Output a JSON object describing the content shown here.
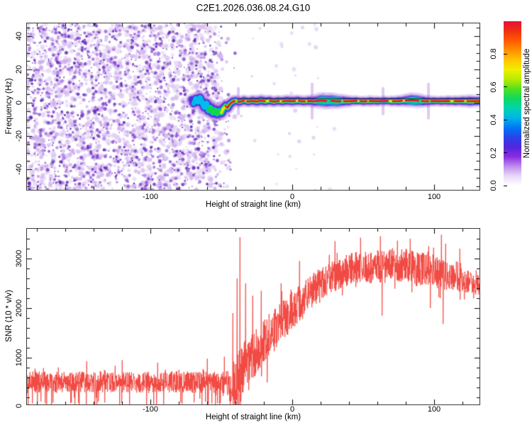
{
  "title": "C2E1.2026.036.08.24.G10",
  "colors": {
    "snr_line": "#f03b33",
    "trace_core": "#e81228",
    "noise_purple": "#8a2be2",
    "axis": "#3a3a3a",
    "background": "#ffffff"
  },
  "top_chart": {
    "xlabel": "Height of straight line (km)",
    "ylabel": "Frequency (Hz)",
    "x_tick_values": [
      -100,
      0,
      100
    ],
    "x_tick_labels": [
      "-100",
      "0",
      "100"
    ],
    "x_minor_step": 20,
    "y_tick_values": [
      40,
      20,
      0,
      -20,
      -40
    ],
    "y_tick_labels": [
      "40",
      "20",
      "0",
      "-20",
      "-40"
    ],
    "y_minor_step": 5
  },
  "bottom_chart": {
    "xlabel": "Height of straight line (km)",
    "ylabel": "SNR (10 * v/v)",
    "x_tick_values": [
      -100,
      0,
      100
    ],
    "x_tick_labels": [
      "-100",
      "0",
      "100"
    ],
    "x_minor_step": 20,
    "y_tick_values": [
      3000,
      2000,
      1000,
      0
    ],
    "y_tick_labels": [
      "3000",
      "2000",
      "1000",
      "0"
    ],
    "y_minor_step": 200
  },
  "colorbar": {
    "label": "Normalized spectral amplitude",
    "tick_values": [
      0.8,
      0.6,
      0.4,
      0.2,
      0.0
    ],
    "tick_labels": [
      "0.8",
      "0.6",
      "0.4",
      "0.2",
      "0.0"
    ],
    "range": [
      0,
      1
    ],
    "gradient_stops_bottom_to_top": [
      "#ffffff",
      "#e8d8f7",
      "#bf8ceb",
      "#8a2be2",
      "#5126dd",
      "#2a43ea",
      "#0077f5",
      "#00b4e8",
      "#00d4b0",
      "#10d860",
      "#52e020",
      "#b8ec00",
      "#f0ee00",
      "#ffc400",
      "#ff9000",
      "#ff5a00",
      "#f03010",
      "#e6103c"
    ]
  },
  "chart_data": [
    {
      "type": "heatmap",
      "title": "C2E1.2026.036.08.24.G10",
      "xlabel": "Height of straight line (km)",
      "ylabel": "Frequency (Hz)",
      "xlim": [
        -187,
        132
      ],
      "ylim": [
        -52,
        48
      ],
      "grid": false,
      "colorbar": {
        "label": "Normalized spectral amplitude",
        "ticks": [
          0.0,
          0.2,
          0.4,
          0.6,
          0.8
        ],
        "range": [
          0,
          1
        ]
      },
      "noise_region": {
        "x_range_km": [
          -187,
          -62
        ],
        "fade_out_by_km": -39,
        "amplitude_range": [
          0.0,
          0.35
        ],
        "description": "broadband purple speckle noise filling all frequencies before signal acquisition"
      },
      "signal_trace": {
        "description": "narrowband carrier near 0 Hz, core amplitude ~1.0, acquired at -71 km, stable after -45 km",
        "core_start_km": -47,
        "black_model_line": {
          "start_km": -38,
          "end_km": 132,
          "hz": 2.3
        },
        "points_km_hz": [
          [
            -71,
            2
          ],
          [
            -69.5,
            -0.5
          ],
          [
            -68,
            2.5
          ],
          [
            -66.5,
            0.5
          ],
          [
            -65,
            3
          ],
          [
            -63.5,
            0
          ],
          [
            -62,
            -2.5
          ],
          [
            -60.5,
            -0.5
          ],
          [
            -59,
            -4.5
          ],
          [
            -57.5,
            -3
          ],
          [
            -56,
            -6
          ],
          [
            -54.5,
            -4.5
          ],
          [
            -53,
            -6.5
          ],
          [
            -51.5,
            -5
          ],
          [
            -50,
            -6
          ],
          [
            -48.5,
            -3.5
          ],
          [
            -47,
            -2
          ],
          [
            -45.5,
            -3
          ],
          [
            -44,
            -0.8
          ],
          [
            -42,
            0.6
          ],
          [
            -40,
            1.1
          ],
          [
            -37,
            0.5
          ],
          [
            -34,
            1.3
          ],
          [
            -31,
            0.6
          ],
          [
            -28,
            1.2
          ],
          [
            -25,
            0.7
          ],
          [
            -22,
            1.3
          ],
          [
            -19,
            0.8
          ],
          [
            -16,
            1.2
          ],
          [
            -13,
            0.6
          ],
          [
            -10,
            1.1
          ],
          [
            -7,
            0.8
          ],
          [
            -4,
            1.2
          ],
          [
            0,
            0.9
          ],
          [
            4,
            1.2
          ],
          [
            8,
            0.8
          ],
          [
            12,
            1.1
          ],
          [
            16,
            0.9
          ],
          [
            20,
            1.3
          ],
          [
            24,
            1.0
          ],
          [
            28,
            1.2
          ],
          [
            32,
            0.8
          ],
          [
            36,
            1.0
          ],
          [
            40,
            0.9
          ],
          [
            45,
            1.1
          ],
          [
            50,
            0.8
          ],
          [
            55,
            1.0
          ],
          [
            60,
            0.9
          ],
          [
            65,
            1.1
          ],
          [
            70,
            0.9
          ],
          [
            75,
            1.0
          ],
          [
            80,
            1.3
          ],
          [
            84,
            1.6
          ],
          [
            88,
            1.3
          ],
          [
            92,
            1.0
          ],
          [
            96,
            0.9
          ],
          [
            100,
            1.0
          ],
          [
            105,
            0.9
          ],
          [
            110,
            1.0
          ],
          [
            115,
            0.9
          ],
          [
            120,
            1.0
          ],
          [
            125,
            0.9
          ],
          [
            132,
            1.0
          ]
        ],
        "blob_km": [
          22,
          30,
          86
        ],
        "streak_km": [
          -38,
          14,
          64,
          96
        ]
      }
    },
    {
      "type": "line",
      "xlabel": "Height of straight line (km)",
      "ylabel": "SNR (10 * v/v)",
      "xlim": [
        -187,
        132
      ],
      "ylim": [
        0,
        3600
      ],
      "grid": false,
      "legend": "none",
      "series": [
        {
          "name": "SNR",
          "color": "#f03b33",
          "x_km": [
            -187,
            -160,
            -140,
            -120,
            -100,
            -80,
            -65,
            -55,
            -48,
            -44,
            -41,
            -38,
            -35,
            -32,
            -29,
            -26,
            -23,
            -20,
            -16,
            -12,
            -8,
            -4,
            0,
            4,
            8,
            12,
            16,
            20,
            25,
            30,
            35,
            40,
            45,
            50,
            55,
            60,
            65,
            70,
            75,
            80,
            85,
            90,
            95,
            100,
            105,
            110,
            115,
            120,
            125,
            132
          ],
          "y_mean": [
            510,
            500,
            520,
            510,
            500,
            515,
            510,
            490,
            470,
            420,
            500,
            750,
            850,
            900,
            1000,
            1100,
            1250,
            1350,
            1500,
            1600,
            1750,
            1850,
            1950,
            2080,
            2180,
            2280,
            2380,
            2480,
            2570,
            2660,
            2740,
            2790,
            2810,
            2840,
            2800,
            2850,
            2820,
            2890,
            2850,
            2890,
            2810,
            2760,
            2800,
            2750,
            2700,
            2660,
            2610,
            2560,
            2510,
            2490
          ],
          "noise_halfwidth_x_km": [
            -187,
            -100,
            -60,
            -50,
            -45,
            -42,
            -39,
            -36,
            -33,
            -30,
            -25,
            -20,
            -15,
            -10,
            -5,
            0,
            5,
            10,
            15,
            20,
            30,
            40,
            50,
            60,
            70,
            80,
            90,
            100,
            110,
            120,
            126,
            132
          ],
          "noise_halfwidth": [
            240,
            240,
            250,
            280,
            330,
            500,
            650,
            620,
            580,
            560,
            520,
            500,
            470,
            450,
            450,
            440,
            420,
            410,
            400,
            390,
            370,
            360,
            350,
            360,
            360,
            380,
            390,
            380,
            340,
            300,
            260,
            240
          ]
        }
      ],
      "spikes": [
        {
          "km": -145,
          "snr": 930,
          "dir": "up"
        },
        {
          "km": -120,
          "snr": 950,
          "dir": "up"
        },
        {
          "km": -95,
          "snr": 900,
          "dir": "up"
        },
        {
          "km": -60,
          "snr": 980,
          "dir": "up"
        },
        {
          "km": -48,
          "snr": 1020,
          "dir": "up"
        },
        {
          "km": -44,
          "snr": 30,
          "dir": "down"
        },
        {
          "km": -42,
          "snr": 1900,
          "dir": "up"
        },
        {
          "km": -41,
          "snr": 40,
          "dir": "down"
        },
        {
          "km": -39,
          "snr": 2600,
          "dir": "up"
        },
        {
          "km": -37,
          "snr": 3430,
          "dir": "up"
        },
        {
          "km": -36.5,
          "snr": 120,
          "dir": "down"
        },
        {
          "km": -33,
          "snr": 2500,
          "dir": "up"
        },
        {
          "km": -31,
          "snr": 350,
          "dir": "down"
        },
        {
          "km": -28,
          "snr": 2250,
          "dir": "up"
        },
        {
          "km": -22,
          "snr": 2350,
          "dir": "up"
        },
        {
          "km": -18,
          "snr": 500,
          "dir": "down"
        },
        {
          "km": -8,
          "snr": 2500,
          "dir": "up"
        },
        {
          "km": 5,
          "snr": 2950,
          "dir": "up"
        },
        {
          "km": 30,
          "snr": 3350,
          "dir": "up"
        },
        {
          "km": 48,
          "snr": 3420,
          "dir": "up"
        },
        {
          "km": 62,
          "snr": 3450,
          "dir": "up"
        },
        {
          "km": 63,
          "snr": 1850,
          "dir": "down"
        },
        {
          "km": 83,
          "snr": 3400,
          "dir": "up"
        },
        {
          "km": 96,
          "snr": 3250,
          "dir": "up"
        },
        {
          "km": 97,
          "snr": 2000,
          "dir": "down"
        },
        {
          "km": 105,
          "snr": 3480,
          "dir": "up"
        },
        {
          "km": 106,
          "snr": 1680,
          "dir": "down"
        },
        {
          "km": 108,
          "snr": 3300,
          "dir": "up"
        },
        {
          "km": 118,
          "snr": 3200,
          "dir": "up"
        }
      ]
    }
  ]
}
